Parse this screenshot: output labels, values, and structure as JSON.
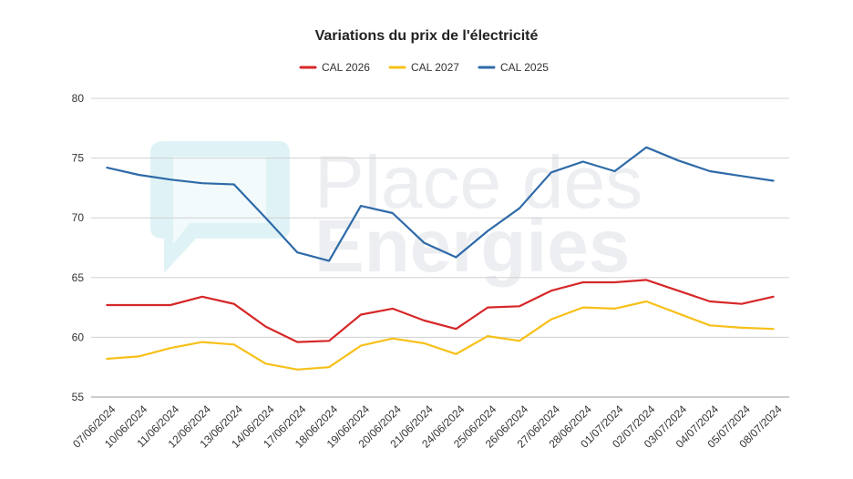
{
  "chart_data": {
    "type": "line",
    "title": "Variations du prix de l'électricité",
    "xlabel": "",
    "ylabel": "",
    "ylim": [
      55,
      80
    ],
    "yticks": [
      55,
      60,
      65,
      70,
      75,
      80
    ],
    "grid": true,
    "legend_position": "top",
    "categories": [
      "07/06/2024",
      "10/06/2024",
      "11/06/2024",
      "12/06/2024",
      "13/06/2024",
      "14/06/2024",
      "17/06/2024",
      "18/06/2024",
      "19/06/2024",
      "20/06/2024",
      "21/06/2024",
      "24/06/2024",
      "25/06/2024",
      "26/06/2024",
      "27/06/2024",
      "28/06/2024",
      "01/07/2024",
      "02/07/2024",
      "03/07/2024",
      "04/07/2024",
      "05/07/2024",
      "08/07/2024"
    ],
    "series": [
      {
        "name": "CAL 2026",
        "color": "#d62728",
        "values": [
          62.7,
          62.7,
          62.7,
          63.4,
          62.8,
          60.9,
          59.6,
          59.7,
          61.9,
          62.4,
          61.4,
          60.7,
          62.5,
          62.6,
          63.9,
          64.6,
          64.6,
          64.8,
          63.9,
          63.0,
          62.8,
          63.4
        ]
      },
      {
        "name": "CAL 2027",
        "color": "#f7c019",
        "values": [
          58.2,
          58.4,
          59.1,
          59.6,
          59.4,
          57.8,
          57.3,
          57.5,
          59.3,
          59.9,
          59.5,
          58.6,
          60.1,
          59.7,
          61.5,
          62.5,
          62.4,
          63.0,
          62.0,
          61.0,
          60.8,
          60.7
        ]
      },
      {
        "name": "CAL 2025",
        "color": "#2e6aa8",
        "values": [
          74.2,
          73.6,
          73.2,
          72.9,
          72.8,
          70.0,
          67.1,
          66.4,
          71.0,
          70.4,
          67.9,
          66.7,
          68.9,
          70.8,
          73.8,
          74.7,
          73.9,
          75.9,
          74.8,
          73.9,
          73.5,
          73.1
        ]
      }
    ]
  },
  "watermark": {
    "line1": "Place des",
    "line2": "Energies",
    "color": "#5bc8d8"
  }
}
